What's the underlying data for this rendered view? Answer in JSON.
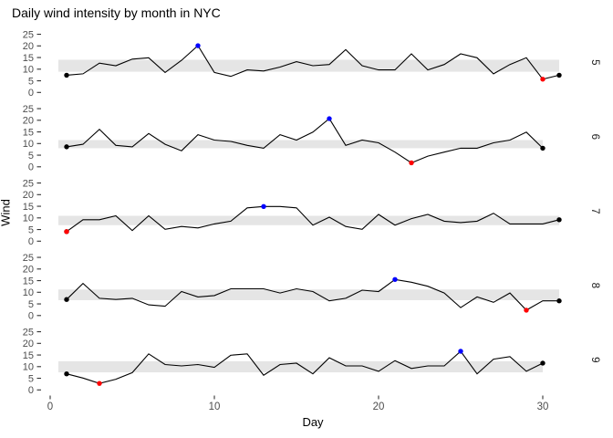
{
  "title": "Daily wind intensity by month in NYC",
  "axes": {
    "x_label": "Day",
    "y_label": "Wind",
    "x_ticks": [
      0,
      10,
      20,
      30
    ],
    "y_ticks": [
      0,
      5,
      10,
      15,
      20,
      25
    ]
  },
  "colors": {
    "line": "#000000",
    "endpoint": "#000000",
    "max_point": "#0000FF",
    "min_point": "#FF0000",
    "band": "#E5E5E5",
    "axis_text": "#4D4D4D",
    "tick_mark": "#333333",
    "strip_text": "#1A1A1A",
    "axis_title": "#000000",
    "background": "#FFFFFF"
  },
  "chart_data": {
    "type": "line",
    "title": "Daily wind intensity by month in NYC",
    "xlabel": "Day",
    "ylabel": "Wind",
    "x_tick_values": [
      0,
      10,
      20,
      30
    ],
    "y_tick_values": [
      0,
      5,
      10,
      15,
      20,
      25
    ],
    "ylim": [
      0,
      25
    ],
    "grid": false,
    "legend": false,
    "highlight_rules": {
      "first_and_last_day": "black point",
      "monthly_maximum": "blue point",
      "monthly_minimum": "red point",
      "gray_band": "interquartile range of month"
    },
    "facets": [
      {
        "label": "5",
        "month": 5,
        "days": [
          1,
          2,
          3,
          4,
          5,
          6,
          7,
          8,
          9,
          10,
          11,
          12,
          13,
          14,
          15,
          16,
          17,
          18,
          19,
          20,
          21,
          22,
          23,
          24,
          25,
          26,
          27,
          28,
          29,
          30,
          31
        ],
        "values": [
          7.4,
          8.0,
          12.6,
          11.5,
          14.3,
          14.9,
          8.6,
          13.8,
          20.1,
          8.6,
          6.9,
          9.7,
          9.2,
          10.9,
          13.2,
          11.5,
          12.0,
          18.4,
          11.5,
          9.7,
          9.7,
          16.6,
          9.7,
          12.0,
          16.6,
          14.9,
          8.0,
          12.0,
          14.9,
          5.7,
          7.4
        ],
        "band": {
          "lower": 8.9,
          "upper": 14.05
        },
        "max": {
          "day": 9,
          "value": 20.1
        },
        "min": {
          "day": 30,
          "value": 5.7
        }
      },
      {
        "label": "6",
        "month": 6,
        "days": [
          1,
          2,
          3,
          4,
          5,
          6,
          7,
          8,
          9,
          10,
          11,
          12,
          13,
          14,
          15,
          16,
          17,
          18,
          19,
          20,
          21,
          22,
          23,
          24,
          25,
          26,
          27,
          28,
          29,
          30
        ],
        "values": [
          8.6,
          9.7,
          16.1,
          9.2,
          8.6,
          14.3,
          9.7,
          6.9,
          13.8,
          11.5,
          10.9,
          9.2,
          8.0,
          13.8,
          11.5,
          14.9,
          20.7,
          9.2,
          11.5,
          10.3,
          6.3,
          1.7,
          4.6,
          6.3,
          8.0,
          8.0,
          10.3,
          11.5,
          14.9,
          8.0
        ],
        "band": {
          "lower": 8.0,
          "upper": 11.5
        },
        "max": {
          "day": 17,
          "value": 20.7
        },
        "min": {
          "day": 22,
          "value": 1.7
        }
      },
      {
        "label": "7",
        "month": 7,
        "days": [
          1,
          2,
          3,
          4,
          5,
          6,
          7,
          8,
          9,
          10,
          11,
          12,
          13,
          14,
          15,
          16,
          17,
          18,
          19,
          20,
          21,
          22,
          23,
          24,
          25,
          26,
          27,
          28,
          29,
          30,
          31
        ],
        "values": [
          4.1,
          9.2,
          9.2,
          10.9,
          4.6,
          10.9,
          5.1,
          6.3,
          5.7,
          7.4,
          8.6,
          14.3,
          14.9,
          14.9,
          14.3,
          6.9,
          10.3,
          6.3,
          5.1,
          11.5,
          6.9,
          9.7,
          11.5,
          8.6,
          8.0,
          8.6,
          12.0,
          7.4,
          7.4,
          7.4,
          9.2
        ],
        "band": {
          "lower": 6.9,
          "upper": 10.9
        },
        "max": {
          "day": 13,
          "value": 14.9
        },
        "min": {
          "day": 1,
          "value": 4.1
        }
      },
      {
        "label": "8",
        "month": 8,
        "days": [
          1,
          2,
          3,
          4,
          5,
          6,
          7,
          8,
          9,
          10,
          11,
          12,
          13,
          14,
          15,
          16,
          17,
          18,
          19,
          20,
          21,
          22,
          23,
          24,
          25,
          26,
          27,
          28,
          29,
          30,
          31
        ],
        "values": [
          6.9,
          13.8,
          7.4,
          6.9,
          7.4,
          4.6,
          4.0,
          10.3,
          8.0,
          8.6,
          11.5,
          11.5,
          11.5,
          9.7,
          11.5,
          10.3,
          6.3,
          7.4,
          10.9,
          10.3,
          15.5,
          14.3,
          12.6,
          9.7,
          3.4,
          8.0,
          5.7,
          9.7,
          2.3,
          6.3,
          6.3
        ],
        "band": {
          "lower": 6.6,
          "upper": 11.2
        },
        "max": {
          "day": 21,
          "value": 15.5
        },
        "min": {
          "day": 29,
          "value": 2.3
        }
      },
      {
        "label": "9",
        "month": 9,
        "days": [
          1,
          2,
          3,
          4,
          5,
          6,
          7,
          8,
          9,
          10,
          11,
          12,
          13,
          14,
          15,
          16,
          17,
          18,
          19,
          20,
          21,
          22,
          23,
          24,
          25,
          26,
          27,
          28,
          29,
          30
        ],
        "values": [
          6.9,
          5.1,
          2.8,
          4.6,
          7.4,
          15.5,
          10.9,
          10.3,
          10.9,
          9.7,
          14.9,
          15.5,
          6.3,
          10.9,
          11.5,
          6.9,
          13.8,
          10.3,
          10.3,
          8.0,
          12.6,
          9.2,
          10.3,
          10.3,
          16.6,
          6.9,
          13.2,
          14.3,
          8.0,
          11.5
        ],
        "band": {
          "lower": 7.55,
          "upper": 12.33
        },
        "max": {
          "day": 25,
          "value": 16.6
        },
        "min": {
          "day": 3,
          "value": 2.8
        }
      }
    ]
  }
}
